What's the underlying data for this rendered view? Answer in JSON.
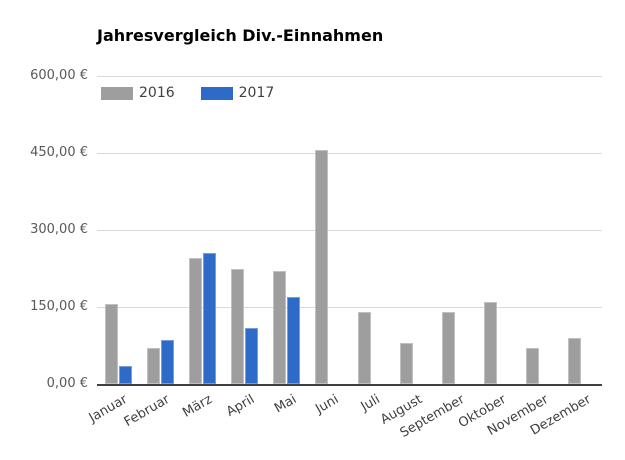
{
  "chart_data": {
    "type": "bar",
    "title": "Jahresvergleich Div.-Einnahmen",
    "categories": [
      "Januar",
      "Februar",
      "März",
      "April",
      "Mai",
      "Juni",
      "Juli",
      "August",
      "September",
      "Oktober",
      "November",
      "Dezember"
    ],
    "series": [
      {
        "name": "2016",
        "color": "#9E9E9E",
        "values": [
          155,
          70,
          245,
          225,
          220,
          455,
          140,
          80,
          140,
          160,
          70,
          90
        ]
      },
      {
        "name": "2017",
        "color": "#2E6AC8",
        "values": [
          35,
          85,
          255,
          110,
          170,
          0,
          0,
          0,
          0,
          0,
          0,
          0
        ]
      }
    ],
    "xlabel": "",
    "ylabel": "",
    "ylim": [
      0,
      600
    ],
    "ytick_interval": 150,
    "ytick_labels": [
      "0,00 €",
      "150,00 €",
      "300,00 €",
      "450,00 €",
      "600,00 €"
    ],
    "grid": true,
    "legend_position": "top-left-inside",
    "colors": {
      "gridline": "#D9D9D9",
      "axis_baseline": "#404040",
      "ytick_text": "#595959",
      "category_text": "#404040",
      "title_text": "#000000",
      "background": "#FFFFFF"
    }
  }
}
